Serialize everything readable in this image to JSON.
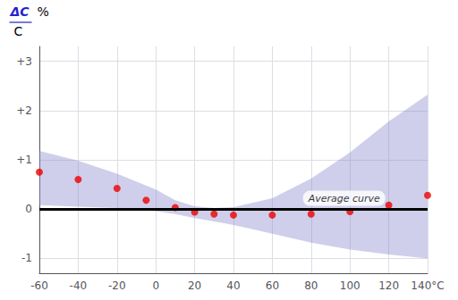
{
  "chart_data": {
    "type": "scatter",
    "ylabel": {
      "numerator": "ΔC",
      "denominator": "C",
      "unit": "%",
      "color": "#2222cc"
    },
    "xlim": [
      -60,
      140
    ],
    "ylim": [
      -1.3,
      3.3
    ],
    "xticks": [
      -60,
      -40,
      -20,
      0,
      20,
      40,
      60,
      80,
      100,
      120,
      {
        "value": 140,
        "label": "140°C"
      }
    ],
    "yticks": [
      -1,
      0,
      {
        "value": 1,
        "label": "+1"
      },
      {
        "value": 2,
        "label": "+2"
      },
      {
        "value": 3,
        "label": "+3"
      }
    ],
    "grid": true,
    "series": [
      {
        "type": "band",
        "color": "#8888cc",
        "x": [
          -60,
          -40,
          -20,
          0,
          10,
          20,
          30,
          40,
          60,
          80,
          100,
          120,
          140
        ],
        "upper": [
          1.18,
          0.98,
          0.72,
          0.4,
          0.18,
          0.06,
          0.02,
          0.04,
          0.22,
          0.62,
          1.15,
          1.78,
          2.32
        ],
        "lower": [
          0.08,
          0.05,
          0.02,
          -0.04,
          -0.1,
          -0.18,
          -0.25,
          -0.32,
          -0.5,
          -0.68,
          -0.82,
          -0.92,
          -1.0
        ]
      },
      {
        "type": "hline",
        "color": "#000000",
        "values": [
          0
        ]
      },
      {
        "type": "scatter",
        "color": "#ee0000",
        "marker": "circle",
        "x": [
          -60,
          -40,
          -20,
          -5,
          10,
          20,
          30,
          40,
          60,
          80,
          100,
          120,
          140
        ],
        "values": [
          0.75,
          0.6,
          0.42,
          0.18,
          0.03,
          -0.06,
          -0.1,
          -0.12,
          -0.12,
          -0.1,
          -0.05,
          0.08,
          0.28
        ]
      }
    ],
    "annotations": [
      {
        "text": "Average curve",
        "x": 97,
        "y": 0.22
      }
    ]
  }
}
